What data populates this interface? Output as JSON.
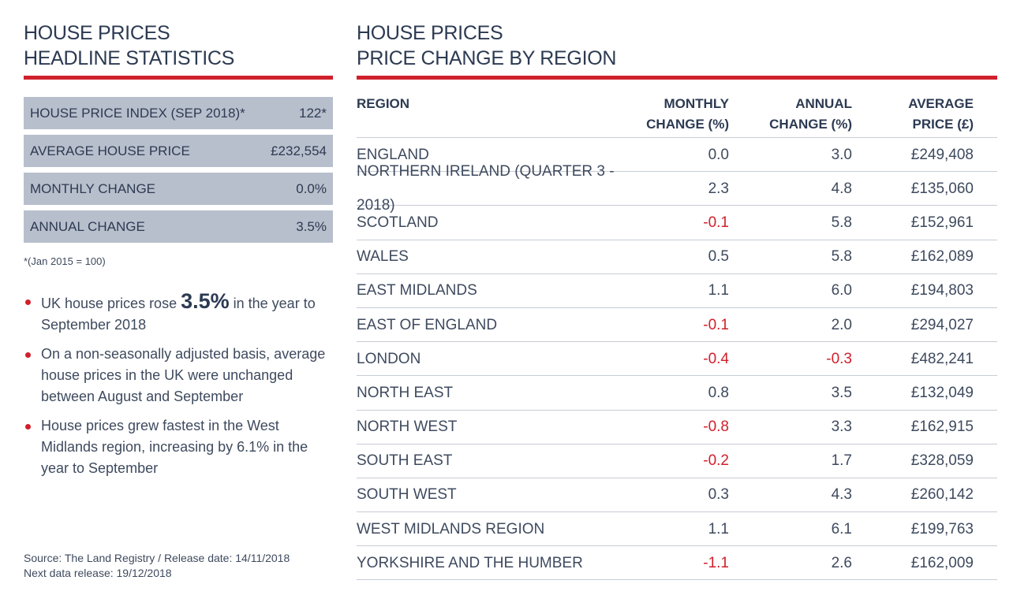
{
  "left": {
    "title_line1": "HOUSE PRICES",
    "title_line2": "HEADLINE STATISTICS",
    "stats": [
      {
        "label": "HOUSE PRICE INDEX (SEP 2018)*",
        "value": "122*"
      },
      {
        "label": "AVERAGE HOUSE PRICE",
        "value": "£232,554"
      },
      {
        "label": "MONTHLY CHANGE",
        "value": "0.0%"
      },
      {
        "label": "ANNUAL CHANGE",
        "value": "3.5%"
      }
    ],
    "footnote": "*(Jan 2015 = 100)",
    "bullet1_pre": "UK house prices rose ",
    "bullet1_big": "3.5%",
    "bullet1_post": " in the year to September 2018",
    "bullet2": "On a non-seasonally adjusted basis, average house prices in the UK were unchanged between August and September",
    "bullet3": "House prices grew fastest in the West Midlands region, increasing by 6.1% in the year to September",
    "source_line1": "Source: The Land Registry / Release date: 14/11/2018",
    "source_line2": "Next data release: 19/12/2018"
  },
  "right": {
    "title_line1": "HOUSE PRICES",
    "title_line2": "PRICE CHANGE BY REGION"
  },
  "colors": {
    "accent": "#d0202c",
    "navy": "#2c3a52",
    "stat_bg": "#b8bfcc"
  },
  "chart_data": {
    "type": "table",
    "title": "PRICE CHANGE BY REGION",
    "columns": [
      "REGION",
      "MONTHLY CHANGE (%)",
      "ANNUAL CHANGE (%)",
      "AVERAGE PRICE (£)"
    ],
    "rows": [
      {
        "region": "ENGLAND",
        "monthly": "0.0",
        "annual": "3.0",
        "price": "£249,408"
      },
      {
        "region": "NORTHERN IRELAND (QUARTER 3 - 2018)",
        "monthly": "2.3",
        "annual": "4.8",
        "price": "£135,060"
      },
      {
        "region": "SCOTLAND",
        "monthly": "-0.1",
        "annual": "5.8",
        "price": "£152,961"
      },
      {
        "region": "WALES",
        "monthly": "0.5",
        "annual": "5.8",
        "price": "£162,089"
      },
      {
        "region": "EAST MIDLANDS",
        "monthly": "1.1",
        "annual": "6.0",
        "price": "£194,803"
      },
      {
        "region": "EAST OF ENGLAND",
        "monthly": "-0.1",
        "annual": "2.0",
        "price": "£294,027"
      },
      {
        "region": "LONDON",
        "monthly": "-0.4",
        "annual": "-0.3",
        "price": "£482,241"
      },
      {
        "region": "NORTH EAST",
        "monthly": "0.8",
        "annual": "3.5",
        "price": "£132,049"
      },
      {
        "region": "NORTH WEST",
        "monthly": "-0.8",
        "annual": "3.3",
        "price": "£162,915"
      },
      {
        "region": "SOUTH EAST",
        "monthly": "-0.2",
        "annual": "1.7",
        "price": "£328,059"
      },
      {
        "region": "SOUTH WEST",
        "monthly": "0.3",
        "annual": "4.3",
        "price": "£260,142"
      },
      {
        "region": "WEST MIDLANDS REGION",
        "monthly": "1.1",
        "annual": "6.1",
        "price": "£199,763"
      },
      {
        "region": "YORKSHIRE AND THE HUMBER",
        "monthly": "-1.1",
        "annual": "2.6",
        "price": "£162,009"
      }
    ]
  }
}
